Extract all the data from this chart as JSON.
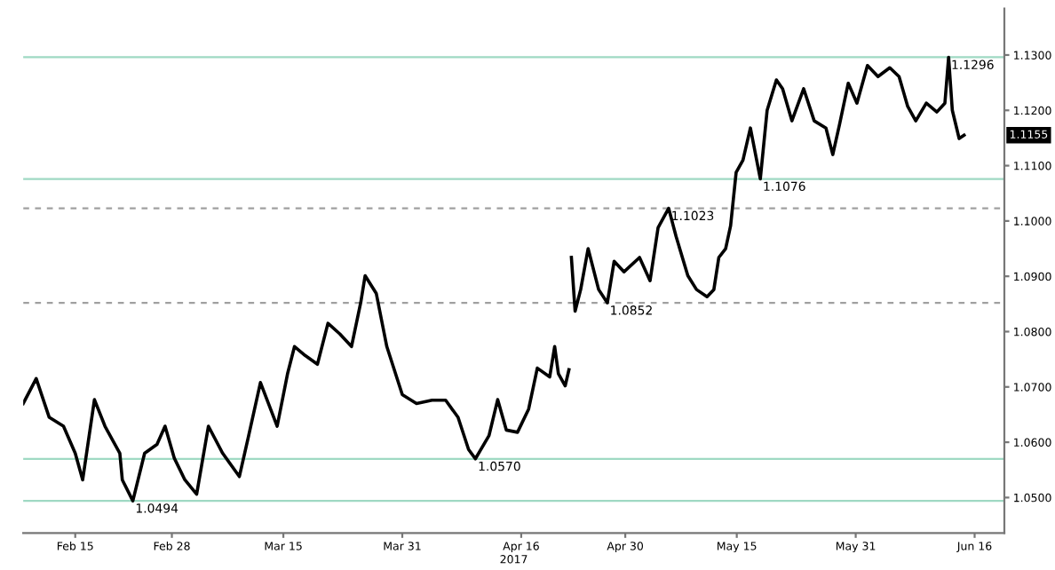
{
  "chart_data": {
    "type": "line",
    "xlabel": "2017",
    "x": [
      "2017-02-08T00:00",
      "2017-02-09T18:00",
      "2017-02-11T12:00",
      "2017-02-13T10:00",
      "2017-02-15T00:00",
      "2017-02-16T00:00",
      "2017-02-17T14:00",
      "2017-02-19T00:00",
      "2017-02-21T00:00",
      "2017-02-21T08:00",
      "2017-02-22T18:00",
      "2017-02-24T08:00",
      "2017-02-26T00:00",
      "2017-02-27T02:00",
      "2017-02-28T08:00",
      "2017-03-01T18:00",
      "2017-03-03T08:00",
      "2017-03-04T22:00",
      "2017-03-06T20:00",
      "2017-03-09T02:00",
      "2017-03-10T08:00",
      "2017-03-11T22:00",
      "2017-03-14T04:00",
      "2017-03-15T14:00",
      "2017-03-16T12:00",
      "2017-03-17T22:00",
      "2017-03-19T14:00",
      "2017-03-21T00:00",
      "2017-03-22T14:00",
      "2017-03-24T04:00",
      "2017-03-25T10:00",
      "2017-03-26T00:00",
      "2017-03-27T12:00",
      "2017-03-28T22:00",
      "2017-03-31T00:00",
      "2017-04-01T22:00",
      "2017-04-04T00:00",
      "2017-04-05T20:00",
      "2017-04-07T12:00",
      "2017-04-08T22:00",
      "2017-04-09T20:00",
      "2017-04-11T16:00",
      "2017-04-12T20:00",
      "2017-04-14T00:00",
      "2017-04-15T12:00",
      "2017-04-17T00:00",
      "2017-04-18T04:00",
      "2017-04-19T20:00",
      "2017-04-20T12:00",
      "2017-04-21T00:00",
      "2017-04-21T22:00",
      "2017-04-22T10:00",
      "2017-04-22T16:00",
      "2017-04-22T18:00",
      "2017-04-23T06:00",
      "2017-04-24T00:00",
      "2017-04-25T00:00",
      "2017-04-26T10:00",
      "2017-04-27T14:00",
      "2017-04-28T12:00",
      "2017-04-29T20:00",
      "2017-05-01T22:00",
      "2017-05-03T08:00",
      "2017-05-04T10:00",
      "2017-05-05T20:00",
      "2017-05-06T20:00",
      "2017-05-08T10:00",
      "2017-05-09T14:00",
      "2017-05-11T00:00",
      "2017-05-11T22:00",
      "2017-05-12T14:00",
      "2017-05-13T12:00",
      "2017-05-14T04:00",
      "2017-05-14T22:00",
      "2017-05-15T20:00",
      "2017-05-16T20:00",
      "2017-05-18T04:00",
      "2017-05-19T02:00",
      "2017-05-20T08:00",
      "2017-05-21T04:00",
      "2017-05-22T10:00",
      "2017-05-24T00:00",
      "2017-05-25T10:00",
      "2017-05-27T00:00",
      "2017-05-27T22:00",
      "2017-05-28T20:00",
      "2017-05-30T00:00",
      "2017-05-31T04:00",
      "2017-06-01T14:00",
      "2017-06-03T00:00",
      "2017-06-04T14:00",
      "2017-06-05T20:00",
      "2017-06-07T00:00",
      "2017-06-08T02:00",
      "2017-06-09T12:00",
      "2017-06-10T22:00",
      "2017-06-12T00:00",
      "2017-06-12T12:00",
      "2017-06-13T00:00",
      "2017-06-13T22:00",
      "2017-06-14T14:00"
    ],
    "series": [
      {
        "color": "#000000",
        "values": [
          1.067,
          1.0715,
          1.0645,
          1.0629,
          1.058,
          1.0532,
          1.0677,
          1.0629,
          1.058,
          1.0532,
          1.0494,
          1.058,
          1.0596,
          1.0629,
          1.0571,
          1.0532,
          1.0506,
          1.0629,
          1.058,
          1.0538,
          1.0612,
          1.0708,
          1.0629,
          1.0725,
          1.0773,
          1.0757,
          1.0741,
          1.0815,
          1.0796,
          1.0773,
          1.0853,
          1.0901,
          1.0869,
          1.0773,
          1.0686,
          1.067,
          1.0676,
          1.0676,
          1.0645,
          1.0587,
          1.057,
          1.0612,
          1.0677,
          1.0622,
          1.0618,
          1.066,
          1.0734,
          1.0718,
          1.0773,
          1.0724,
          1.0702,
          1.0731,
          null,
          1.0934,
          1.0837,
          1.0876,
          1.095,
          1.0876,
          1.0852,
          1.0927,
          1.0908,
          1.0934,
          1.0892,
          1.0988,
          1.1023,
          1.0972,
          1.0901,
          1.0876,
          1.0863,
          1.0876,
          1.0934,
          1.095,
          1.0991,
          1.1088,
          1.111,
          1.1168,
          1.1076,
          1.12,
          1.1255,
          1.1239,
          1.1181,
          1.1239,
          1.1181,
          1.1168,
          1.112,
          1.1175,
          1.1249,
          1.1213,
          1.1281,
          1.1261,
          1.1277,
          1.1261,
          1.1207,
          1.1181,
          1.1213,
          1.1197,
          1.1213,
          1.1296,
          1.12,
          1.1149,
          1.1155
        ]
      }
    ],
    "xlim": [
      "2017-02-08",
      "2017-06-20"
    ],
    "xticks": [
      {
        "value": "2017-02-15",
        "label": "Feb 15"
      },
      {
        "value": "2017-02-28",
        "label": "Feb 28"
      },
      {
        "value": "2017-03-15",
        "label": "Mar 15"
      },
      {
        "value": "2017-03-31",
        "label": "Mar 31"
      },
      {
        "value": "2017-04-16",
        "label": "Apr 16"
      },
      {
        "value": "2017-04-30",
        "label": "Apr 30"
      },
      {
        "value": "2017-05-15",
        "label": "May 15"
      },
      {
        "value": "2017-05-31",
        "label": "May 31"
      },
      {
        "value": "2017-06-16",
        "label": "Jun 16"
      }
    ],
    "ylim": [
      1.0436,
      1.1384
    ],
    "yticks": [
      {
        "value": 1.05,
        "label": "1.0500"
      },
      {
        "value": 1.06,
        "label": "1.0600"
      },
      {
        "value": 1.07,
        "label": "1.0700"
      },
      {
        "value": 1.08,
        "label": "1.0800"
      },
      {
        "value": 1.09,
        "label": "1.0900"
      },
      {
        "value": 1.1,
        "label": "1.1000"
      },
      {
        "value": 1.11,
        "label": "1.1100"
      },
      {
        "value": 1.12,
        "label": "1.1200"
      },
      {
        "value": 1.13,
        "label": "1.1300"
      }
    ],
    "ref_lines": [
      {
        "axis": "y",
        "value": 1.0494,
        "color": "#9fd9c3",
        "line_style": "solid"
      },
      {
        "axis": "y",
        "value": 1.057,
        "color": "#9fd9c3",
        "line_style": "solid"
      },
      {
        "axis": "y",
        "value": 1.0852,
        "color": "#a0a0a0",
        "line_style": "dashed"
      },
      {
        "axis": "y",
        "value": 1.1023,
        "color": "#a0a0a0",
        "line_style": "dashed"
      },
      {
        "axis": "y",
        "value": 1.1076,
        "color": "#9fd9c3",
        "line_style": "solid"
      },
      {
        "axis": "y",
        "value": 1.1296,
        "color": "#9fd9c3",
        "line_style": "solid"
      }
    ],
    "annotations": [
      {
        "text": "1.0494",
        "x": "2017-02-22T18:00",
        "y": 1.0494
      },
      {
        "text": "1.0570",
        "x": "2017-04-09T20:00",
        "y": 1.057
      },
      {
        "text": "1.0852",
        "x": "2017-04-27T14:00",
        "y": 1.0852
      },
      {
        "text": "1.1023",
        "x": "2017-05-05T20:00",
        "y": 1.1023
      },
      {
        "text": "1.1076",
        "x": "2017-05-18T04:00",
        "y": 1.1076
      },
      {
        "text": "1.1296",
        "x": "2017-06-12T12:00",
        "y": 1.1296
      },
      "1.1155"
    ],
    "grid": false,
    "legend": false,
    "marker": "none",
    "line_style": "solid"
  }
}
